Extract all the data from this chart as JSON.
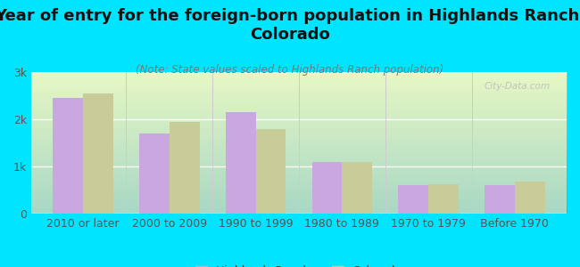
{
  "title": "Year of entry for the foreign-born population in Highlands Ranch,\nColorado",
  "subtitle": "(Note: State values scaled to Highlands Ranch population)",
  "categories": [
    "2010 or later",
    "2000 to 2009",
    "1990 to 1999",
    "1980 to 1989",
    "1970 to 1979",
    "Before 1970"
  ],
  "highlands_ranch": [
    2450,
    1700,
    2150,
    1100,
    600,
    600
  ],
  "colorado": [
    2550,
    1950,
    1800,
    1100,
    630,
    680
  ],
  "bar_color_hr": "#c9a8e0",
  "bar_color_co": "#c8cc99",
  "background_color": "#00e5ff",
  "ytick_labels": [
    "0",
    "1k",
    "2k",
    "3k"
  ],
  "ytick_values": [
    0,
    1000,
    2000,
    3000
  ],
  "ylim": [
    0,
    3000
  ],
  "watermark": "City-Data.com",
  "legend_hr": "Highlands Ranch",
  "legend_co": "Colorado",
  "title_fontsize": 13,
  "subtitle_fontsize": 8.5,
  "axis_fontsize": 9,
  "legend_fontsize": 9
}
